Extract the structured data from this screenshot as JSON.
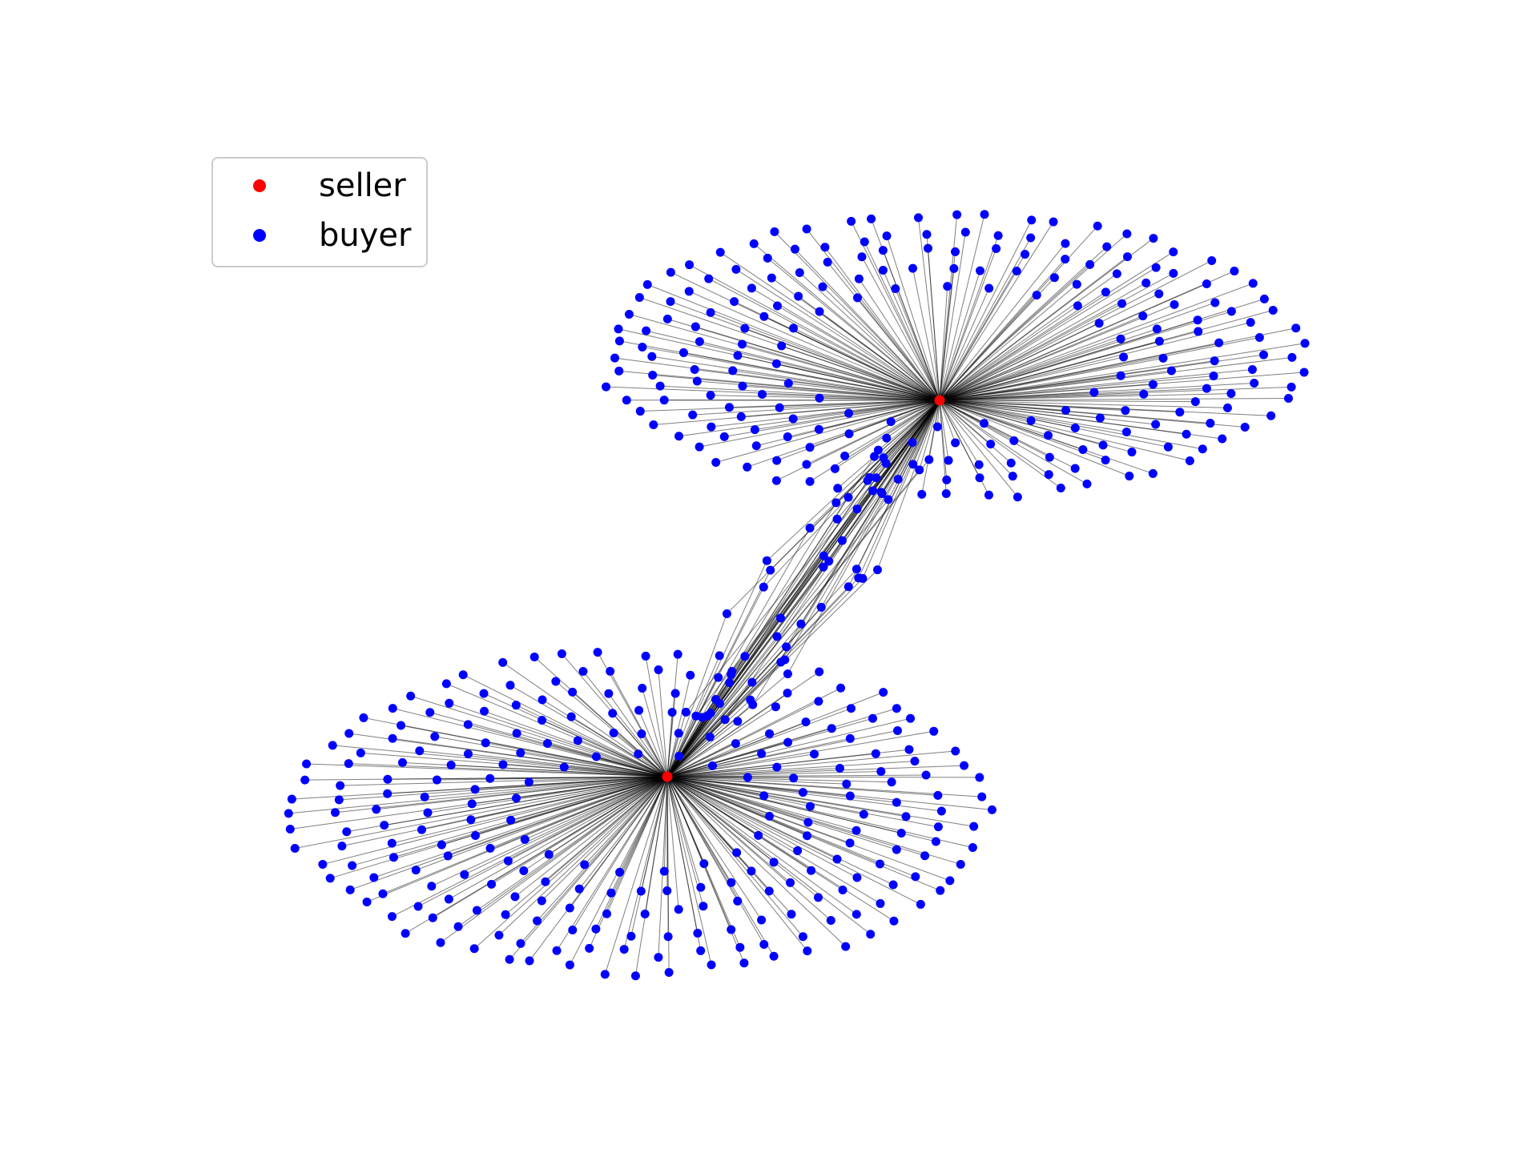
{
  "diagram": {
    "colors": {
      "seller": "#ff0000",
      "buyer": "#0000ff",
      "edge": "#000000"
    },
    "legend": {
      "placement": "top-left",
      "entries": [
        {
          "label": "seller",
          "color": "#ff0000"
        },
        {
          "label": "buyer",
          "color": "#0000ff"
        }
      ]
    },
    "nodes": [
      {
        "role": "seller",
        "buyers_connected": 270
      },
      {
        "role": "seller",
        "buyers_connected": 300
      }
    ],
    "shared_buyers": 45
  }
}
